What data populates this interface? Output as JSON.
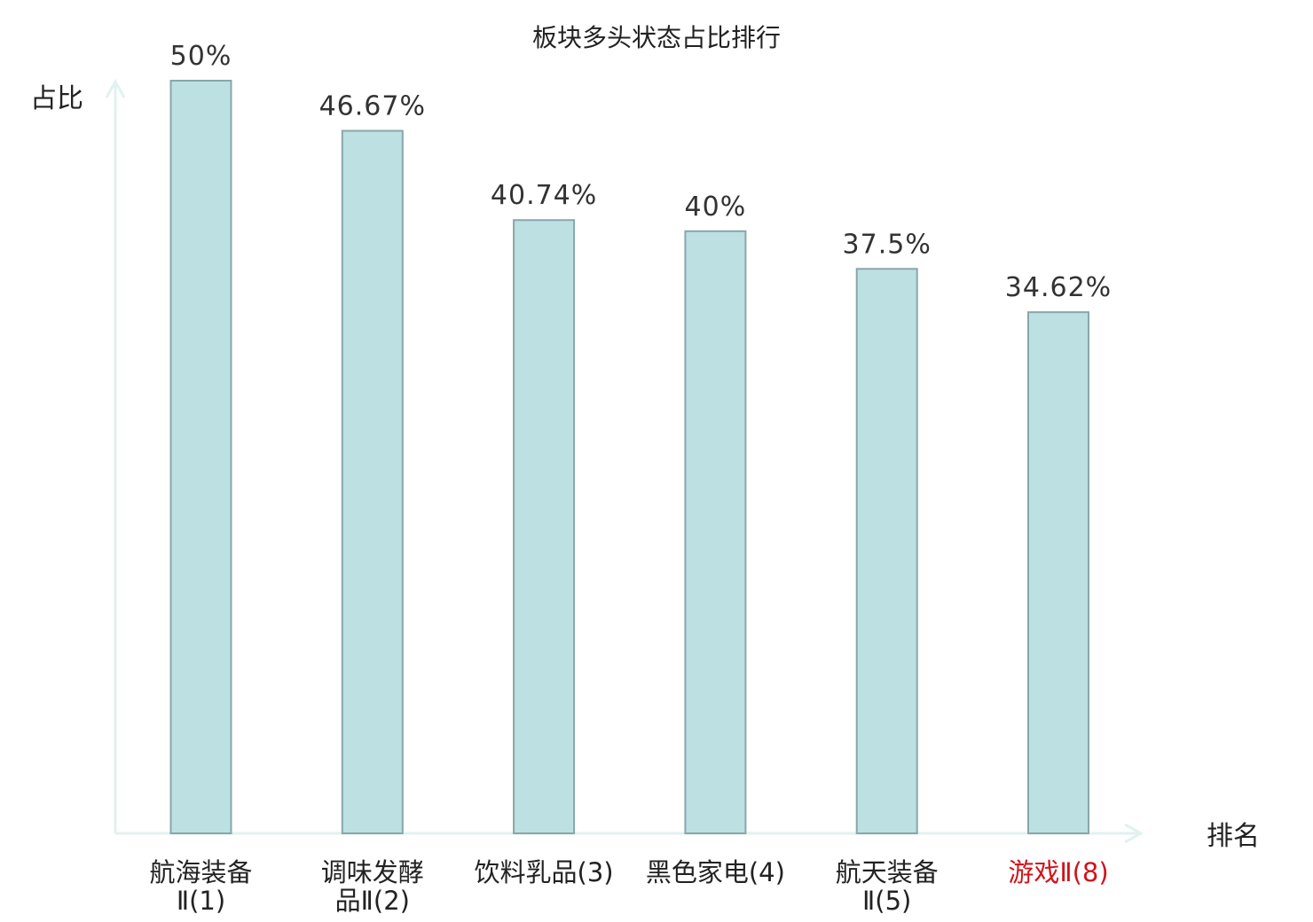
{
  "chart_data": {
    "type": "bar",
    "title": "板块多头状态占比排行",
    "ylabel": "占比",
    "xlabel": "排名",
    "categories": [
      {
        "lines": [
          "航海装备",
          "Ⅱ(1)"
        ],
        "highlight": false
      },
      {
        "lines": [
          "调味发酵",
          "品Ⅱ(2)"
        ],
        "highlight": false
      },
      {
        "lines": [
          "饮料乳品(3)"
        ],
        "highlight": false
      },
      {
        "lines": [
          "黑色家电(4)"
        ],
        "highlight": false
      },
      {
        "lines": [
          "航天装备",
          "Ⅱ(5)"
        ],
        "highlight": false
      },
      {
        "lines": [
          "游戏Ⅱ(8)"
        ],
        "highlight": true
      }
    ],
    "values": [
      50,
      46.67,
      40.74,
      40,
      37.5,
      34.62
    ],
    "value_labels": [
      "50%",
      "46.67%",
      "40.74%",
      "40%",
      "37.5%",
      "34.62%"
    ],
    "ylim": [
      0,
      50
    ],
    "grid": false,
    "colors": {
      "bar_fill": "#bde0e3",
      "bar_stroke": "#88a7aa",
      "axis": "#e1f2ef",
      "highlight_text": "#d0141c",
      "text": "#222222"
    }
  }
}
